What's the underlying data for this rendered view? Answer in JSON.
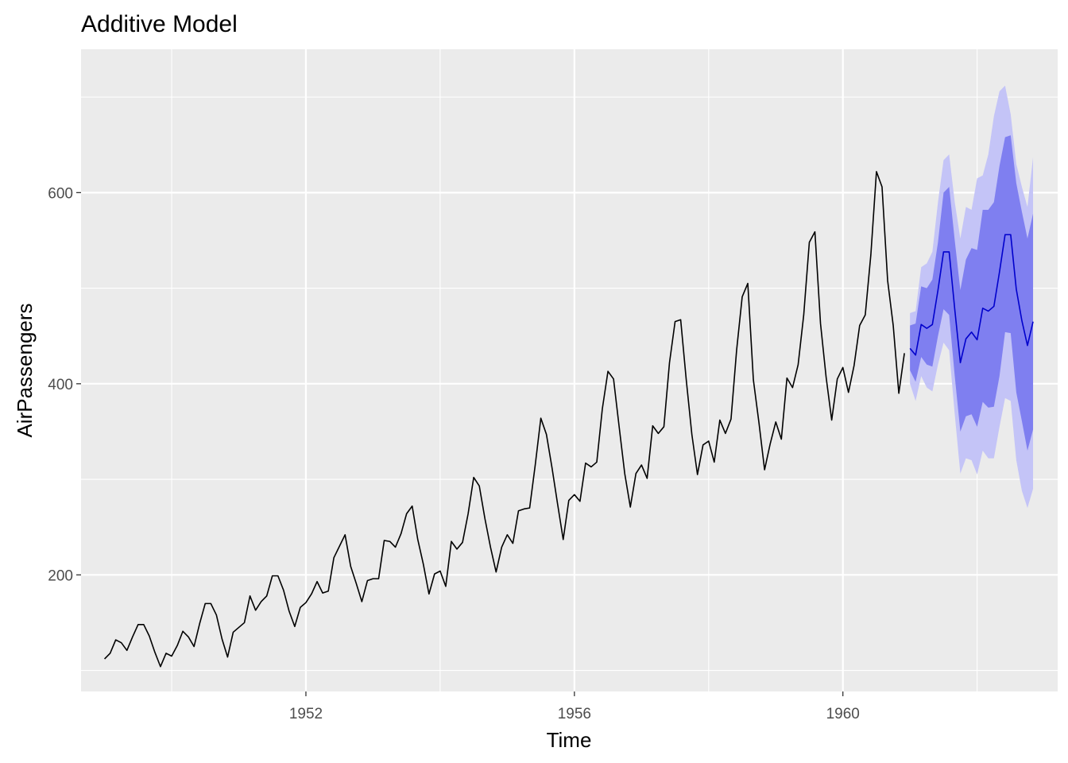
{
  "chart_data": {
    "type": "line",
    "title": "Additive Model",
    "xlabel": "Time",
    "ylabel": "AirPassengers",
    "xlim": [
      1948.65,
      1963.2
    ],
    "ylim": [
      78,
      750
    ],
    "x_ticks": [
      1952,
      1956,
      1960
    ],
    "y_ticks": [
      200,
      400,
      600
    ],
    "grid": true,
    "legend": "none",
    "colors": {
      "panel": "#ebebeb",
      "grid": "#ffffff",
      "series": "#000000",
      "forecast": "#0000cc",
      "band80": "#7f7ff0",
      "band95": "#c4c4f7",
      "tick_text": "#4d4d4d",
      "tick_mark": "#333333"
    },
    "series": [
      {
        "start": 1949,
        "frequency": 12,
        "values": [
          112,
          118,
          132,
          129,
          121,
          135,
          148,
          148,
          136,
          119,
          104,
          118,
          115,
          126,
          141,
          135,
          125,
          149,
          170,
          170,
          158,
          133,
          114,
          140,
          145,
          150,
          178,
          163,
          172,
          178,
          199,
          199,
          184,
          162,
          146,
          166,
          171,
          180,
          193,
          181,
          183,
          218,
          230,
          242,
          209,
          191,
          172,
          194,
          196,
          196,
          236,
          235,
          229,
          243,
          264,
          272,
          237,
          211,
          180,
          201,
          204,
          188,
          235,
          227,
          234,
          264,
          302,
          293,
          259,
          229,
          203,
          229,
          242,
          233,
          267,
          269,
          270,
          315,
          364,
          347,
          312,
          274,
          237,
          278,
          284,
          277,
          317,
          313,
          318,
          374,
          413,
          405,
          355,
          306,
          271,
          306,
          315,
          301,
          356,
          348,
          355,
          422,
          465,
          467,
          404,
          347,
          305,
          336,
          340,
          318,
          362,
          348,
          363,
          435,
          491,
          505,
          404,
          359,
          310,
          337,
          360,
          342,
          406,
          396,
          420,
          472,
          548,
          559,
          463,
          407,
          362,
          405,
          417,
          391,
          419,
          461,
          472,
          535,
          622,
          606,
          508,
          461,
          390,
          432
        ]
      },
      {
        "start": 1961,
        "frequency": 12,
        "values": [
          437,
          430,
          462,
          458,
          462,
          498,
          538,
          538,
          478,
          422,
          447,
          454,
          446,
          479,
          476,
          481,
          517,
          556,
          556,
          499,
          466,
          440,
          465
        ],
        "lo80": [
          414,
          402,
          428,
          420,
          418,
          450,
          478,
          472,
          408,
          350,
          366,
          368,
          355,
          381,
          375,
          376,
          408,
          454,
          453,
          391,
          361,
          330,
          352
        ],
        "hi80": [
          461,
          463,
          502,
          500,
          509,
          548,
          600,
          606,
          550,
          498,
          530,
          542,
          540,
          582,
          582,
          590,
          628,
          658,
          660,
          610,
          580,
          552,
          578
        ],
        "lo95": [
          400,
          382,
          408,
          396,
          392,
          420,
          443,
          435,
          368,
          306,
          322,
          320,
          305,
          330,
          322,
          322,
          355,
          385,
          382,
          320,
          288,
          270,
          290
        ],
        "hi95": [
          474,
          476,
          522,
          526,
          538,
          590,
          634,
          640,
          590,
          552,
          585,
          582,
          615,
          618,
          640,
          680,
          706,
          712,
          682,
          630,
          606,
          585,
          637
        ]
      }
    ]
  }
}
